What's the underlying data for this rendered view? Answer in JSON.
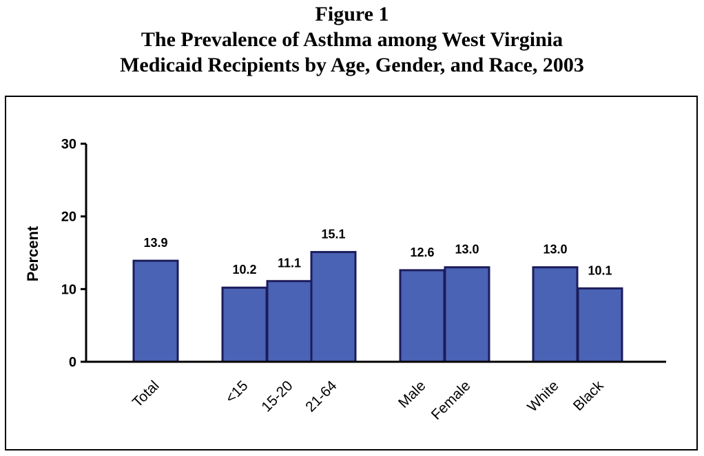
{
  "title": {
    "line1": "Figure 1",
    "line2": "The Prevalence of Asthma among West Virginia",
    "line3": "Medicaid Recipients by Age, Gender, and Race, 2003"
  },
  "colors": {
    "bar_fill": "#4a63b4",
    "bar_stroke": "#1c1c5c",
    "axis": "#000000"
  },
  "chart_data": {
    "type": "bar",
    "categories": [
      "Total",
      "<15",
      "15-20",
      "21-64",
      "Male",
      "Female",
      "White",
      "Black"
    ],
    "values": [
      13.9,
      10.2,
      11.1,
      15.1,
      12.6,
      13.0,
      13.0,
      10.1
    ],
    "data_labels": [
      "13.9",
      "10.2",
      "11.1",
      "15.1",
      "12.6",
      "13.0",
      "13.0",
      "10.1"
    ],
    "groups": [
      [
        "Total"
      ],
      [
        "<15",
        "15-20",
        "21-64"
      ],
      [
        "Male",
        "Female"
      ],
      [
        "White",
        "Black"
      ]
    ],
    "title": "The Prevalence of Asthma among West Virginia Medicaid Recipients by Age, Gender, and Race, 2003",
    "xlabel": "",
    "ylabel": "Percent",
    "ylim": [
      0,
      30
    ],
    "yticks": [
      0,
      10,
      20,
      30
    ],
    "ytick_labels": [
      "0",
      "10",
      "20",
      "30"
    ],
    "grid": false,
    "legend": "none"
  }
}
